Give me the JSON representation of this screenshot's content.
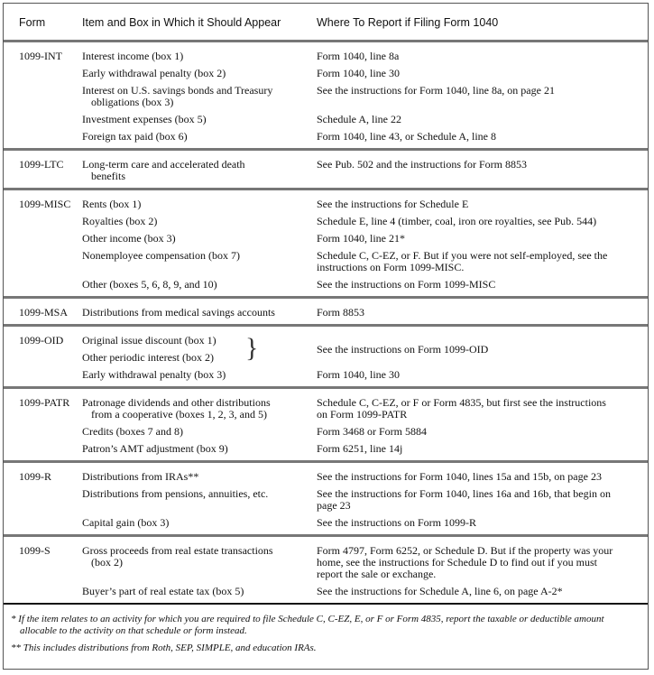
{
  "header": {
    "form": "Form",
    "item": "Item and Box in Which it Should Appear",
    "where": "Where To Report if Filing Form 1040"
  },
  "groups": [
    {
      "form": "1099-INT",
      "rows": [
        {
          "item": "Interest income (box 1)",
          "where": "Form 1040, line 8a"
        },
        {
          "item": "Early withdrawal penalty (box 2)",
          "where": "Form 1040, line 30"
        },
        {
          "item": "Interest on U.S. savings bonds and Treasury",
          "item2": "obligations (box 3)",
          "where": "See the instructions for Form 1040, line 8a, on page 21"
        },
        {
          "item": "Investment expenses (box 5)",
          "where": "Schedule A, line 22"
        },
        {
          "item": "Foreign tax paid (box 6)",
          "where": "Form 1040, line 43, or Schedule A, line 8"
        }
      ]
    },
    {
      "form": "1099-LTC",
      "rows": [
        {
          "item": "Long-term care and accelerated death",
          "item2": "benefits",
          "where": "See Pub. 502 and the instructions for Form 8853"
        }
      ]
    },
    {
      "form": "1099-MISC",
      "rows": [
        {
          "item": "Rents (box 1)",
          "where": "See the instructions for Schedule E"
        },
        {
          "item": "Royalties (box 2)",
          "where": "Schedule E, line 4 (timber, coal, iron ore royalties, see Pub. 544)"
        },
        {
          "item": "Other income (box 3)",
          "where": "Form 1040, line 21*"
        },
        {
          "item": "Nonemployee compensation (box 7)",
          "where": "Schedule C, C-EZ, or F. But if you were not self-employed, see the",
          "where2": "instructions on Form 1099-MISC."
        },
        {
          "item": "Other (boxes 5, 6, 8, 9, and 10)",
          "where": "See the instructions on Form 1099-MISC"
        }
      ]
    },
    {
      "form": "1099-MSA",
      "rows": [
        {
          "item": "Distributions from medical savings accounts",
          "where": "Form 8853"
        }
      ]
    },
    {
      "form": "1099-OID",
      "rows": [
        {
          "item": "Original issue discount (box 1)",
          "item2": "Other periodic interest (box 2)",
          "where": "See the instructions on Form 1099-OID"
        },
        {
          "item": "Early withdrawal penalty (box 3)",
          "where": "Form 1040, line 30"
        }
      ]
    },
    {
      "form": "1099-PATR",
      "rows": [
        {
          "item": "Patronage dividends and other distributions",
          "item2": "from a cooperative (boxes 1, 2, 3, and 5)",
          "where": "Schedule C, C-EZ, or F or Form 4835, but first see the instructions",
          "where2": "on Form 1099-PATR"
        },
        {
          "item": "Credits (boxes 7 and 8)",
          "where": "Form 3468 or Form 5884"
        },
        {
          "item": "Patron’s AMT adjustment (box 9)",
          "where": "Form 6251, line 14j"
        }
      ]
    },
    {
      "form": "1099-R",
      "rows": [
        {
          "item": "Distributions from IRAs**",
          "where": "See the instructions for Form 1040, lines 15a and 15b, on page 23"
        },
        {
          "item": "Distributions from pensions, annuities, etc.",
          "where": "See the instructions for Form 1040, lines 16a and 16b, that begin on",
          "where2": "page 23"
        },
        {
          "item": "Capital gain (box 3)",
          "where": "See the instructions on Form 1099-R"
        }
      ]
    },
    {
      "form": "1099-S",
      "rows": [
        {
          "item": "Gross proceeds from real estate transactions",
          "item2": "(box 2)",
          "where": "Form 4797, Form 6252, or Schedule D. But if the property was your",
          "where2": "home, see the instructions for Schedule D to find out if you must",
          "where3": "report the sale or exchange."
        },
        {
          "item": "Buyer’s part of real estate tax (box 5)",
          "where": "See the instructions for Schedule A, line 6, on page A-2*"
        }
      ]
    }
  ],
  "footnotes": [
    "*  If the item relates to an activity for which you are required to file Schedule C, C-EZ, E, or F or Form 4835, report the taxable or deductible amount allocable to the activity on that schedule or form instead.",
    "** This includes distributions from Roth, SEP, SIMPLE, and education IRAs."
  ]
}
